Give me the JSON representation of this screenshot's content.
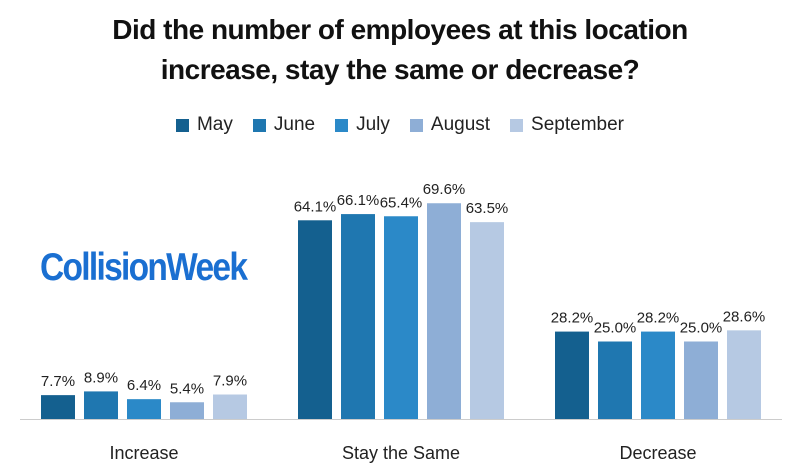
{
  "title_lines": [
    "Did the number of employees at this location",
    "increase, stay the same or decrease?"
  ],
  "logo_text": "CollisionWeek",
  "colors": {
    "May": "#14608f",
    "June": "#1f77b0",
    "July": "#2b89c8",
    "August": "#8eaed6",
    "September": "#b6c9e3",
    "logo": "#1a6fd1"
  },
  "chart_data": {
    "type": "bar",
    "title": "Did the number of employees at this location increase, stay the same or decrease?",
    "categories": [
      "Increase",
      "Stay the Same",
      "Decrease"
    ],
    "series": [
      {
        "name": "May",
        "values": [
          7.7,
          64.1,
          28.2
        ],
        "labels": [
          "7.7%",
          "64.1%",
          "28.2%"
        ]
      },
      {
        "name": "June",
        "values": [
          8.9,
          66.1,
          25.0
        ],
        "labels": [
          "8.9%",
          "66.1%",
          "25.0%"
        ]
      },
      {
        "name": "July",
        "values": [
          6.4,
          65.4,
          28.2
        ],
        "labels": [
          "6.4%",
          "65.4%",
          "28.2%"
        ]
      },
      {
        "name": "August",
        "values": [
          5.4,
          69.6,
          25.0
        ],
        "labels": [
          "5.4%",
          "69.6%",
          "25.0%"
        ]
      },
      {
        "name": "September",
        "values": [
          7.9,
          63.5,
          28.6
        ],
        "labels": [
          "7.9%",
          "63.5%",
          "28.6%"
        ]
      }
    ],
    "ylim": [
      0,
      100
    ],
    "grid": false,
    "legend": "top",
    "value_unit": "%"
  }
}
